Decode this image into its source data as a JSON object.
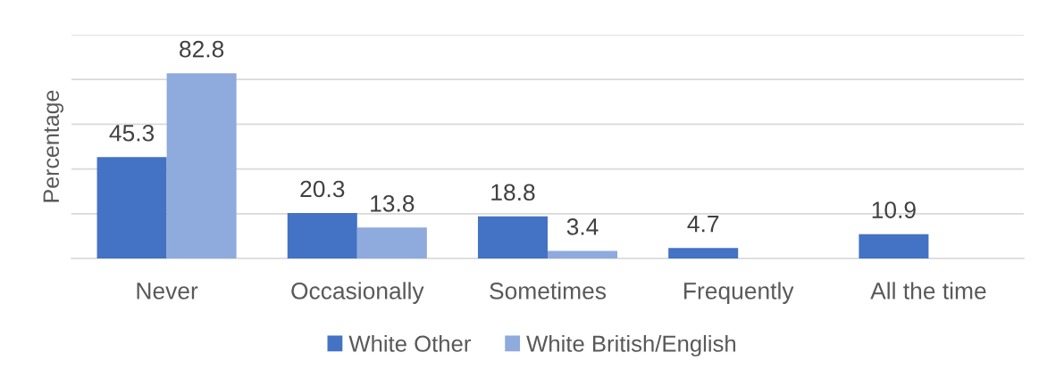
{
  "chart_data": {
    "type": "bar",
    "ylabel": "Percentage",
    "categories": [
      "Never",
      "Occasionally",
      "Sometimes",
      "Frequently",
      "All the time"
    ],
    "series": [
      {
        "name": "White Other",
        "color": "#4472c4",
        "values": [
          45.3,
          20.3,
          18.8,
          4.7,
          10.9
        ]
      },
      {
        "name": "White British/English",
        "color": "#8faadc",
        "values": [
          82.8,
          13.8,
          3.4,
          null,
          null
        ]
      }
    ],
    "ylim": [
      0,
      100
    ],
    "yticks": [
      {
        "value": 0,
        "label": null
      },
      {
        "value": 20,
        "label": null
      },
      {
        "value": 40,
        "label": null
      },
      {
        "value": 60,
        "label": null
      },
      {
        "value": 80,
        "label": null
      },
      {
        "value": 100,
        "label": null
      }
    ],
    "grid": "y",
    "legend": "bottom",
    "data_labels": true,
    "tick_labels": "x"
  }
}
